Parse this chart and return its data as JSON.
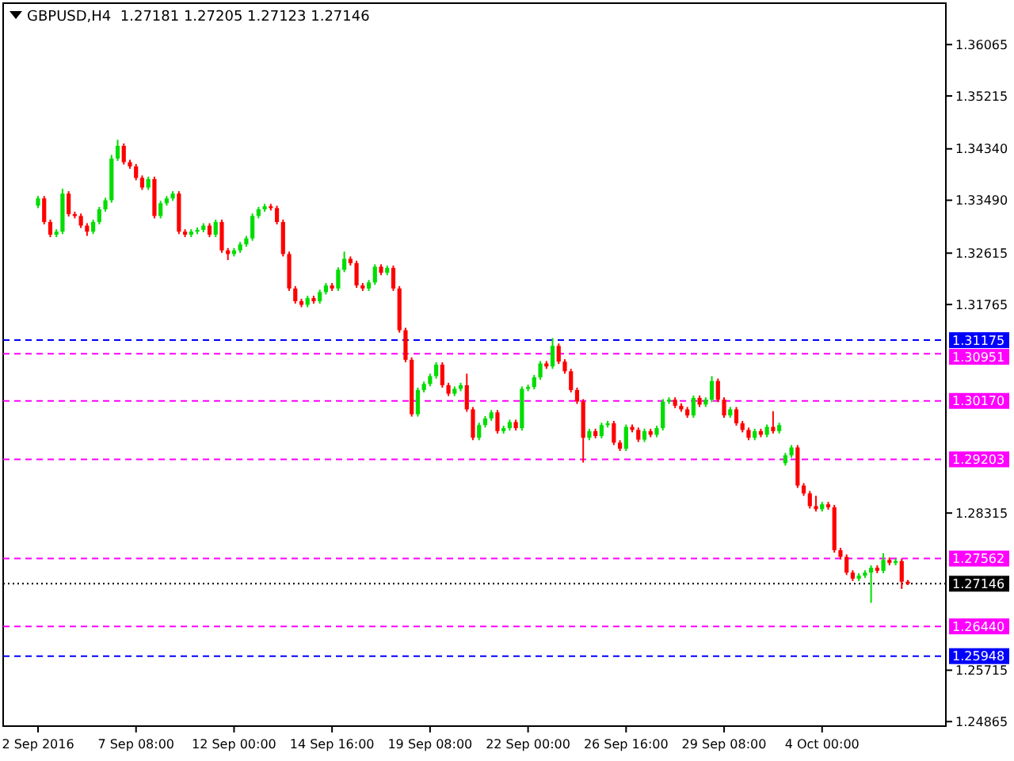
{
  "chart_data": {
    "type": "candlestick",
    "title": "GBPUSD,H4  1.27181 1.27205 1.27123 1.27146",
    "categories": [
      "2 Sep 2016",
      null,
      null,
      null,
      null,
      null,
      null,
      null,
      null,
      null,
      null,
      null,
      null,
      null,
      null,
      null,
      "7 Sep 08:00",
      null,
      null,
      null,
      null,
      null,
      null,
      null,
      null,
      null,
      null,
      null,
      null,
      null,
      null,
      null,
      "12 Sep 00:00",
      null,
      null,
      null,
      null,
      null,
      null,
      null,
      null,
      null,
      null,
      null,
      null,
      null,
      null,
      null,
      "14 Sep 16:00",
      null,
      null,
      null,
      null,
      null,
      null,
      null,
      null,
      null,
      null,
      null,
      null,
      null,
      null,
      null,
      "19 Sep 08:00",
      null,
      null,
      null,
      null,
      null,
      null,
      null,
      null,
      null,
      null,
      null,
      null,
      null,
      null,
      null,
      "22 Sep 00:00",
      null,
      null,
      null,
      null,
      null,
      null,
      null,
      null,
      null,
      null,
      null,
      null,
      null,
      null,
      null,
      "26 Sep 16:00",
      null,
      null,
      null,
      null,
      null,
      null,
      null,
      null,
      null,
      null,
      null,
      null,
      null,
      null,
      null,
      "29 Sep 08:00",
      null,
      null,
      null,
      null,
      null,
      null,
      null,
      null,
      null,
      null,
      null,
      null,
      null,
      null,
      null,
      "4 Oct 00:00",
      null,
      null,
      null,
      null,
      null,
      null,
      null,
      null,
      null,
      null,
      null,
      null,
      null,
      null
    ],
    "ohlc": [
      [
        1.334,
        1.3356,
        1.3336,
        1.3352
      ],
      [
        1.3352,
        1.3356,
        1.3309,
        1.3313
      ],
      [
        1.3313,
        1.3317,
        1.3288,
        1.3292
      ],
      [
        1.3292,
        1.3301,
        1.3288,
        1.3297
      ],
      [
        1.3297,
        1.3368,
        1.3293,
        1.336
      ],
      [
        1.336,
        1.3364,
        1.3322,
        1.3326
      ],
      [
        1.3326,
        1.333,
        1.3319,
        1.3323
      ],
      [
        1.3323,
        1.3327,
        1.3303,
        1.3307
      ],
      [
        1.3307,
        1.3311,
        1.329,
        1.3297
      ],
      [
        1.3297,
        1.3317,
        1.3293,
        1.3313
      ],
      [
        1.3313,
        1.3338,
        1.3309,
        1.3334
      ],
      [
        1.3334,
        1.3353,
        1.333,
        1.3349
      ],
      [
        1.3349,
        1.3424,
        1.3345,
        1.3418
      ],
      [
        1.3418,
        1.3449,
        1.3414,
        1.3439
      ],
      [
        1.3439,
        1.3443,
        1.3408,
        1.3412
      ],
      [
        1.3412,
        1.3416,
        1.3401,
        1.3405
      ],
      [
        1.3405,
        1.3409,
        1.3382,
        1.3386
      ],
      [
        1.3386,
        1.339,
        1.3366,
        1.337
      ],
      [
        1.337,
        1.3388,
        1.3366,
        1.3384
      ],
      [
        1.3384,
        1.3388,
        1.3319,
        1.3323
      ],
      [
        1.3323,
        1.3348,
        1.3319,
        1.3344
      ],
      [
        1.3344,
        1.3356,
        1.334,
        1.3352
      ],
      [
        1.3352,
        1.3364,
        1.3348,
        1.336
      ],
      [
        1.336,
        1.3364,
        1.3293,
        1.3297
      ],
      [
        1.3297,
        1.3301,
        1.3288,
        1.3292
      ],
      [
        1.3292,
        1.3301,
        1.3288,
        1.3297
      ],
      [
        1.3297,
        1.3304,
        1.3293,
        1.33
      ],
      [
        1.33,
        1.3311,
        1.3296,
        1.3307
      ],
      [
        1.3307,
        1.3311,
        1.3288,
        1.3292
      ],
      [
        1.3292,
        1.3317,
        1.3288,
        1.3313
      ],
      [
        1.3313,
        1.3317,
        1.3262,
        1.3266
      ],
      [
        1.3266,
        1.327,
        1.325,
        1.326
      ],
      [
        1.326,
        1.327,
        1.3256,
        1.3266
      ],
      [
        1.3266,
        1.328,
        1.3262,
        1.3276
      ],
      [
        1.3276,
        1.329,
        1.3272,
        1.3286
      ],
      [
        1.3286,
        1.3327,
        1.3282,
        1.3323
      ],
      [
        1.3323,
        1.3338,
        1.3319,
        1.3334
      ],
      [
        1.3334,
        1.3343,
        1.333,
        1.3339
      ],
      [
        1.3339,
        1.3343,
        1.3332,
        1.3336
      ],
      [
        1.3336,
        1.334,
        1.3309,
        1.3313
      ],
      [
        1.3313,
        1.3317,
        1.3256,
        1.326
      ],
      [
        1.326,
        1.3264,
        1.3199,
        1.3203
      ],
      [
        1.3203,
        1.3207,
        1.3178,
        1.3182
      ],
      [
        1.3182,
        1.3186,
        1.3172,
        1.3176
      ],
      [
        1.3176,
        1.3191,
        1.3172,
        1.3187
      ],
      [
        1.3187,
        1.3191,
        1.3178,
        1.3182
      ],
      [
        1.3182,
        1.3201,
        1.3178,
        1.3197
      ],
      [
        1.3197,
        1.3212,
        1.3193,
        1.3208
      ],
      [
        1.3208,
        1.3212,
        1.3199,
        1.3203
      ],
      [
        1.3203,
        1.3238,
        1.3199,
        1.3234
      ],
      [
        1.3234,
        1.3264,
        1.323,
        1.3252
      ],
      [
        1.3252,
        1.3256,
        1.3241,
        1.3245
      ],
      [
        1.3245,
        1.3249,
        1.3204,
        1.3208
      ],
      [
        1.3208,
        1.3212,
        1.3199,
        1.3203
      ],
      [
        1.3203,
        1.3217,
        1.3199,
        1.3213
      ],
      [
        1.3213,
        1.3243,
        1.3209,
        1.3239
      ],
      [
        1.3239,
        1.3243,
        1.3225,
        1.3229
      ],
      [
        1.3229,
        1.3241,
        1.3225,
        1.3237
      ],
      [
        1.3237,
        1.3241,
        1.3199,
        1.3203
      ],
      [
        1.3203,
        1.3207,
        1.313,
        1.3134
      ],
      [
        1.3134,
        1.3138,
        1.3081,
        1.3085
      ],
      [
        1.3085,
        1.3089,
        1.2991,
        1.2995
      ],
      [
        1.2995,
        1.3039,
        1.2991,
        1.3035
      ],
      [
        1.3035,
        1.3049,
        1.3031,
        1.3045
      ],
      [
        1.3045,
        1.3062,
        1.3041,
        1.3058
      ],
      [
        1.3058,
        1.3081,
        1.3054,
        1.3077
      ],
      [
        1.3077,
        1.3081,
        1.3039,
        1.3043
      ],
      [
        1.3043,
        1.3047,
        1.3025,
        1.3029
      ],
      [
        1.3029,
        1.3041,
        1.3025,
        1.3037
      ],
      [
        1.3037,
        1.3047,
        1.3033,
        1.3043
      ],
      [
        1.3043,
        1.3062,
        1.2999,
        1.3003
      ],
      [
        1.3003,
        1.3007,
        1.2952,
        1.2956
      ],
      [
        1.2956,
        1.2981,
        1.2952,
        1.2977
      ],
      [
        1.2977,
        1.2992,
        1.2973,
        1.2988
      ],
      [
        1.2988,
        1.3002,
        1.2984,
        1.2998
      ],
      [
        1.2998,
        1.3002,
        1.2963,
        1.2967
      ],
      [
        1.2967,
        1.2976,
        1.2963,
        1.2972
      ],
      [
        1.2972,
        1.2986,
        1.2968,
        1.2982
      ],
      [
        1.2982,
        1.2986,
        1.2968,
        1.2972
      ],
      [
        1.2972,
        1.3041,
        1.2968,
        1.3037
      ],
      [
        1.3037,
        1.3044,
        1.3033,
        1.304
      ],
      [
        1.304,
        1.306,
        1.3036,
        1.3056
      ],
      [
        1.3056,
        1.3083,
        1.3052,
        1.3079
      ],
      [
        1.3079,
        1.3083,
        1.307,
        1.3074
      ],
      [
        1.3074,
        1.3121,
        1.307,
        1.3108
      ],
      [
        1.3108,
        1.3112,
        1.3078,
        1.3082
      ],
      [
        1.3082,
        1.3086,
        1.3062,
        1.3066
      ],
      [
        1.3066,
        1.307,
        1.3031,
        1.3035
      ],
      [
        1.3035,
        1.3039,
        1.3012,
        1.3016
      ],
      [
        1.3016,
        1.302,
        1.2915,
        1.2956
      ],
      [
        1.2956,
        1.2971,
        1.2952,
        1.2967
      ],
      [
        1.2967,
        1.2971,
        1.2955,
        1.2959
      ],
      [
        1.2959,
        1.2981,
        1.2955,
        1.2977
      ],
      [
        1.2977,
        1.2984,
        1.2973,
        1.298
      ],
      [
        1.298,
        1.2984,
        1.2944,
        1.2948
      ],
      [
        1.2948,
        1.2952,
        1.2934,
        1.2938
      ],
      [
        1.2938,
        1.2978,
        1.2934,
        1.2974
      ],
      [
        1.2974,
        1.2978,
        1.2965,
        1.2969
      ],
      [
        1.2969,
        1.2973,
        1.2949,
        1.2953
      ],
      [
        1.2953,
        1.2971,
        1.2949,
        1.2967
      ],
      [
        1.2967,
        1.2971,
        1.2957,
        1.2961
      ],
      [
        1.2961,
        1.2976,
        1.2957,
        1.2972
      ],
      [
        1.2972,
        1.302,
        1.2968,
        1.3016
      ],
      [
        1.3016,
        1.3023,
        1.3012,
        1.3019
      ],
      [
        1.3019,
        1.3023,
        1.3005,
        1.3009
      ],
      [
        1.3009,
        1.3013,
        1.2999,
        1.3003
      ],
      [
        1.3003,
        1.3007,
        1.2989,
        1.2993
      ],
      [
        1.2993,
        1.3026,
        1.2989,
        1.3022
      ],
      [
        1.3022,
        1.3026,
        1.3007,
        1.3011
      ],
      [
        1.3011,
        1.3023,
        1.3007,
        1.3019
      ],
      [
        1.3019,
        1.3058,
        1.3015,
        1.305
      ],
      [
        1.305,
        1.3054,
        1.3015,
        1.3019
      ],
      [
        1.3019,
        1.3023,
        1.2989,
        1.2993
      ],
      [
        1.2993,
        1.3007,
        1.2989,
        1.3003
      ],
      [
        1.3003,
        1.3007,
        1.2976,
        1.298
      ],
      [
        1.298,
        1.2984,
        1.2965,
        1.2969
      ],
      [
        1.2969,
        1.2973,
        1.2952,
        1.2956
      ],
      [
        1.2956,
        1.2971,
        1.2952,
        1.2967
      ],
      [
        1.2967,
        1.2971,
        1.2957,
        1.2961
      ],
      [
        1.2961,
        1.2978,
        1.2957,
        1.2974
      ],
      [
        1.2974,
        1.3,
        1.2963,
        1.2967
      ],
      [
        1.2967,
        1.2981,
        1.2963,
        1.2977
      ],
      [
        1.2914,
        1.2931,
        1.291,
        1.2927
      ],
      [
        1.2927,
        1.2944,
        1.2923,
        1.294
      ],
      [
        1.294,
        1.2944,
        1.2873,
        1.2877
      ],
      [
        1.2877,
        1.2881,
        1.286,
        1.2864
      ],
      [
        1.2864,
        1.2868,
        1.2839,
        1.2843
      ],
      [
        1.2843,
        1.286,
        1.2834,
        1.2838
      ],
      [
        1.2838,
        1.285,
        1.2834,
        1.2846
      ],
      [
        1.2846,
        1.285,
        1.2837,
        1.2841
      ],
      [
        1.2841,
        1.2845,
        1.2766,
        1.277
      ],
      [
        1.277,
        1.2774,
        1.2755,
        1.2759
      ],
      [
        1.2759,
        1.2763,
        1.2729,
        1.2733
      ],
      [
        1.2733,
        1.2737,
        1.2719,
        1.2723
      ],
      [
        1.2723,
        1.2732,
        1.2719,
        1.2728
      ],
      [
        1.2728,
        1.2737,
        1.2724,
        1.2733
      ],
      [
        1.2733,
        1.2745,
        1.2683,
        1.2741
      ],
      [
        1.2741,
        1.2745,
        1.2732,
        1.2736
      ],
      [
        1.2736,
        1.2765,
        1.2732,
        1.2754
      ],
      [
        1.2754,
        1.2758,
        1.2745,
        1.2749
      ],
      [
        1.2749,
        1.2756,
        1.2745,
        1.2752
      ],
      [
        1.2752,
        1.2756,
        1.2706,
        1.2718
      ],
      [
        1.27181,
        1.27205,
        1.27123,
        1.27146
      ]
    ],
    "ylim": [
      1.2479,
      1.3675
    ],
    "yticks": [
      1.36065,
      1.35215,
      {
        "value": 1.3434,
        "label": "1.34340"
      },
      {
        "value": 1.3349,
        "label": "1.33490"
      },
      1.32615,
      1.31765,
      1.28315,
      1.25715,
      1.24865
    ],
    "grid": false,
    "ref_lines": [
      {
        "axis": "y",
        "value": 1.31175,
        "label": "1.31175",
        "color": "#0000ff",
        "line_style": "dashed"
      },
      {
        "axis": "y",
        "value": 1.30951,
        "label": "1.30951",
        "color": "#ff00ff",
        "line_style": "dashed"
      },
      {
        "axis": "y",
        "value": 1.3017,
        "label": "1.30170",
        "color": "#ff00ff",
        "line_style": "dashed"
      },
      {
        "axis": "y",
        "value": 1.29203,
        "label": "1.29203",
        "color": "#ff00ff",
        "line_style": "dashed"
      },
      {
        "axis": "y",
        "value": 1.27562,
        "label": "1.27562",
        "color": "#ff00ff",
        "line_style": "dashed"
      },
      {
        "axis": "y",
        "value": 1.27146,
        "label": "1.27146",
        "color": "#000000",
        "line_style": "dotted"
      },
      {
        "axis": "y",
        "value": 1.2644,
        "label": "1.26440",
        "color": "#ff00ff",
        "line_style": "dashed"
      },
      {
        "axis": "y",
        "value": 1.25948,
        "label": "1.25948",
        "color": "#0000ff",
        "line_style": "dashed"
      }
    ]
  }
}
